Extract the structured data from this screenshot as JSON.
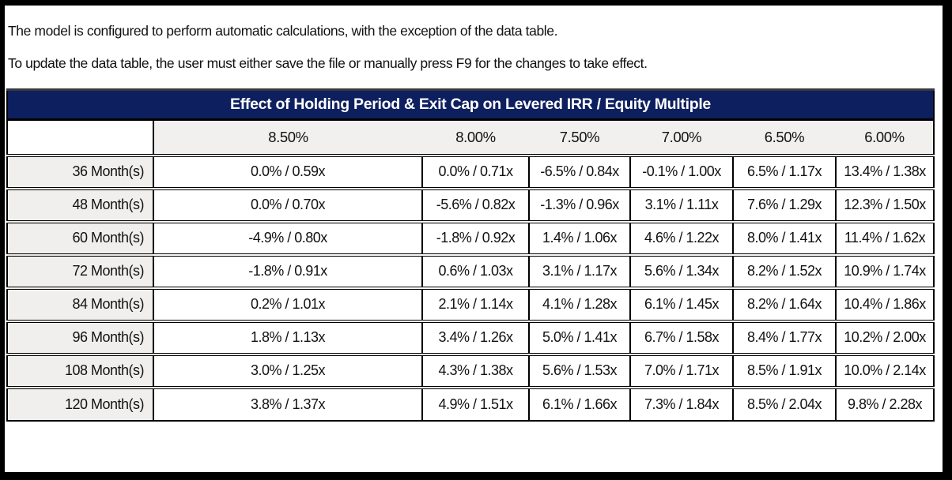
{
  "notes": {
    "line1": "The model is configured to perform automatic calculations, with the exception of the data table.",
    "line2": "To update the data table, the user must either save the file or manually press F9 for the changes to take effect."
  },
  "table": {
    "title": "Effect of Holding Period & Exit Cap on Levered IRR / Equity Multiple",
    "column_headers": [
      "8.50%",
      "8.00%",
      "7.50%",
      "7.00%",
      "6.50%",
      "6.00%"
    ],
    "rows": [
      {
        "label": "36 Month(s)",
        "values": [
          "0.0% / 0.59x",
          "0.0% / 0.71x",
          "-6.5% / 0.84x",
          "-0.1% / 1.00x",
          "6.5% / 1.17x",
          "13.4% / 1.38x"
        ]
      },
      {
        "label": "48 Month(s)",
        "values": [
          "0.0% / 0.70x",
          "-5.6% / 0.82x",
          "-1.3% / 0.96x",
          "3.1% / 1.11x",
          "7.6% / 1.29x",
          "12.3% / 1.50x"
        ]
      },
      {
        "label": "60 Month(s)",
        "values": [
          "-4.9% / 0.80x",
          "-1.8% / 0.92x",
          "1.4% / 1.06x",
          "4.6% / 1.22x",
          "8.0% / 1.41x",
          "11.4% / 1.62x"
        ]
      },
      {
        "label": "72 Month(s)",
        "values": [
          "-1.8% / 0.91x",
          "0.6% / 1.03x",
          "3.1% / 1.17x",
          "5.6% / 1.34x",
          "8.2% / 1.52x",
          "10.9% / 1.74x"
        ]
      },
      {
        "label": "84 Month(s)",
        "values": [
          "0.2% / 1.01x",
          "2.1% / 1.14x",
          "4.1% / 1.28x",
          "6.1% / 1.45x",
          "8.2% / 1.64x",
          "10.4% / 1.86x"
        ]
      },
      {
        "label": "96 Month(s)",
        "values": [
          "1.8% / 1.13x",
          "3.4% / 1.26x",
          "5.0% / 1.41x",
          "6.7% / 1.58x",
          "8.4% / 1.77x",
          "10.2% / 2.00x"
        ]
      },
      {
        "label": "108 Month(s)",
        "values": [
          "3.0% / 1.25x",
          "4.3% / 1.38x",
          "5.6% / 1.53x",
          "7.0% / 1.71x",
          "8.5% / 1.91x",
          "10.0% / 2.14x"
        ]
      },
      {
        "label": "120 Month(s)",
        "values": [
          "3.8% / 1.37x",
          "4.9% / 1.51x",
          "6.1% / 1.66x",
          "7.3% / 1.84x",
          "8.5% / 2.04x",
          "9.8% / 2.28x"
        ]
      }
    ]
  },
  "colors": {
    "title_bg": "#0d1f5e",
    "title_text": "#ffffff",
    "header_bg": "#f1f0ee",
    "row_label_bg": "#f0efed",
    "grid": "#000000",
    "cell_text": "#121212",
    "frame": "#000000"
  }
}
